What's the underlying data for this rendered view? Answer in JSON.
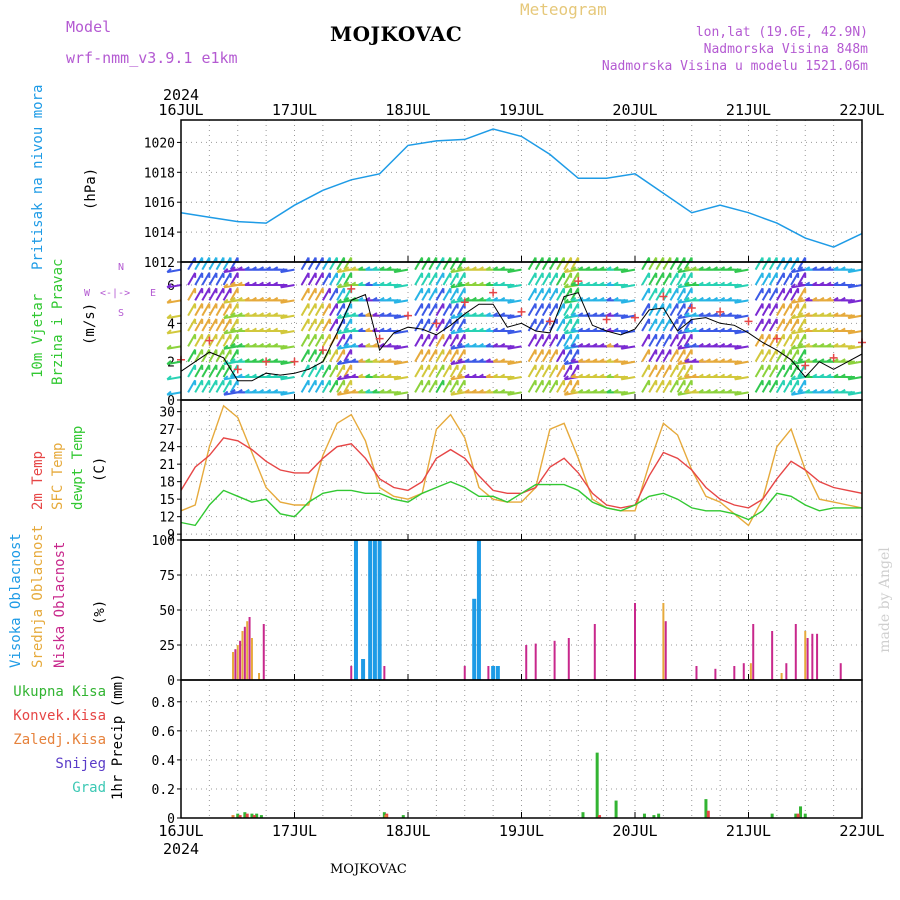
{
  "header": {
    "model_label": "Model",
    "model_name": "wrf-nmm_v3.9.1 e1km",
    "station": "MOJKOVAC",
    "chart_title": "Meteogram",
    "coords": "lon,lat (19.6E, 42.9N)",
    "elev": "Nadmorska Visina 848m",
    "elev_model": "Nadmorska Visina u modelu 1521.06m",
    "credit": "made by Angel",
    "footer": "MOJKOVAC"
  },
  "colors": {
    "pressure": "#1e9be6",
    "temp2m": "#e64646",
    "sfc": "#e6aa3c",
    "dewpt": "#32c832",
    "high": "#1e9be6",
    "mid": "#e6aa3c",
    "low": "#c8288c",
    "rain": "#32b432",
    "conv": "#e64646",
    "frz": "#e6823c",
    "snow": "#5a3cc8",
    "grad": "#3cc8b4",
    "label_purple": "#b45ad2"
  },
  "time_axis": {
    "year": "2024",
    "labels": [
      "16JUL",
      "17JUL",
      "18JUL",
      "19JUL",
      "20JUL",
      "21JUL",
      "22JUL"
    ]
  },
  "panel_labels": {
    "pressure": "Pritisak na nivou mora",
    "pressure_unit": "(hPa)",
    "wind1": "10m Vjetar",
    "wind2": "Brzina i Pravac",
    "wind_unit": "(m/s)",
    "temp1": "2m Temp",
    "temp2": "SFC Temp",
    "temp3": "dewpt Temp",
    "temp_unit": "(C)",
    "cloud1": "Visoka Oblacnost",
    "cloud2": "Srednja Oblacnost",
    "cloud3": "Niska Oblacnost",
    "cloud_unit": "(%)",
    "precip_unit": "1hr Precip (mm)",
    "compass_n": "N",
    "compass_s": "S",
    "compass_e": "E",
    "compass_w": "W"
  },
  "precip_legend": [
    "Ukupna Kisa",
    "Konvek.Kisa",
    "Zaledj.Kisa",
    "Snijeg",
    "Grad"
  ],
  "chart_data": [
    {
      "type": "line",
      "name": "pressure",
      "ylim": [
        1012,
        1021.5
      ],
      "yticks": [
        1012,
        1014,
        1016,
        1018,
        1020
      ],
      "x": [
        0,
        6,
        12,
        18,
        24,
        30,
        36,
        42,
        48,
        54,
        60,
        66,
        72,
        78,
        84,
        90,
        96,
        102,
        108,
        114,
        120,
        126,
        132,
        138,
        144
      ],
      "series": [
        {
          "values": [
            1015.3,
            1015.0,
            1014.7,
            1014.6,
            1015.8,
            1016.8,
            1017.5,
            1017.9,
            1019.8,
            1020.1,
            1020.2,
            1020.9,
            1020.4,
            1019.2,
            1017.6,
            1017.6,
            1017.9,
            1016.6,
            1015.3,
            1015.8,
            1015.3,
            1014.6,
            1013.6,
            1013.0,
            1013.9
          ]
        }
      ]
    },
    {
      "type": "line",
      "name": "wind",
      "ylim": [
        0,
        7.2
      ],
      "yticks": [
        0,
        2,
        4,
        6
      ],
      "x": [
        0,
        3,
        6,
        9,
        12,
        15,
        18,
        21,
        24,
        27,
        30,
        33,
        36,
        39,
        42,
        45,
        48,
        51,
        54,
        57,
        60,
        63,
        66,
        69,
        72,
        75,
        78,
        81,
        84,
        87,
        90,
        93,
        96,
        99,
        102,
        105,
        108,
        111,
        114,
        117,
        120,
        123,
        126,
        129,
        132,
        135,
        138,
        141,
        144
      ],
      "series": [
        {
          "values": [
            1.5,
            2.0,
            2.5,
            2.2,
            1.0,
            1.0,
            1.4,
            1.3,
            1.4,
            1.6,
            2.0,
            3.5,
            5.2,
            5.5,
            2.6,
            3.5,
            3.8,
            3.7,
            3.4,
            3.9,
            4.5,
            5.0,
            5.0,
            3.8,
            4.0,
            3.6,
            3.5,
            5.4,
            5.6,
            3.9,
            3.6,
            3.4,
            3.7,
            4.7,
            4.8,
            3.6,
            4.2,
            4.3,
            4.0,
            3.9,
            3.5,
            3.0,
            2.6,
            2.1,
            1.2,
            2.0,
            1.6,
            2.0,
            2.4
          ]
        }
      ]
    },
    {
      "type": "line",
      "name": "temperature",
      "ylim": [
        8,
        32
      ],
      "yticks": [
        9,
        12,
        15,
        18,
        21,
        24,
        27,
        30
      ],
      "x": [
        0,
        3,
        6,
        9,
        12,
        15,
        18,
        21,
        24,
        27,
        30,
        33,
        36,
        39,
        42,
        45,
        48,
        51,
        54,
        57,
        60,
        63,
        66,
        69,
        72,
        75,
        78,
        81,
        84,
        87,
        90,
        93,
        96,
        99,
        102,
        105,
        108,
        111,
        114,
        117,
        120,
        123,
        126,
        129,
        132,
        135,
        138,
        141,
        144
      ],
      "series": [
        {
          "values": [
            16.5,
            20.5,
            22.5,
            25.5,
            25.0,
            23.5,
            21.5,
            20.0,
            19.5,
            19.5,
            22.0,
            24.0,
            24.5,
            22.0,
            18.5,
            17.0,
            16.5,
            18.0,
            22.0,
            23.5,
            22.0,
            19.0,
            16.5,
            16.0,
            16.0,
            17.0,
            20.5,
            22.0,
            19.5,
            16.0,
            14.0,
            13.5,
            14.0,
            19.0,
            23.0,
            22.0,
            20.0,
            17.0,
            15.0,
            14.0,
            13.5,
            15.0,
            18.5,
            21.5,
            20.0,
            18.0,
            17.0,
            16.5,
            16.0
          ]
        },
        {
          "values": [
            13.0,
            14.0,
            24.0,
            31.0,
            29.0,
            23.0,
            17.0,
            14.5,
            14.0,
            14.0,
            22.5,
            28.0,
            29.5,
            25.0,
            17.0,
            15.5,
            15.0,
            16.0,
            27.0,
            29.5,
            25.5,
            17.0,
            15.0,
            14.5,
            14.5,
            17.0,
            27.0,
            28.0,
            22.0,
            15.0,
            13.5,
            13.0,
            13.0,
            21.0,
            28.0,
            26.0,
            20.0,
            15.5,
            14.5,
            12.5,
            10.5,
            15.0,
            24.0,
            27.0,
            20.0,
            15.0,
            14.5,
            14.0,
            13.5
          ]
        },
        {
          "values": [
            11.0,
            10.5,
            14.0,
            16.5,
            15.5,
            14.5,
            15.0,
            12.5,
            12.0,
            14.5,
            16.0,
            16.5,
            16.5,
            16.0,
            16.0,
            15.0,
            14.5,
            16.0,
            17.0,
            18.0,
            17.0,
            15.5,
            15.5,
            14.5,
            16.0,
            17.5,
            17.5,
            17.5,
            16.5,
            14.5,
            13.5,
            13.0,
            14.0,
            15.5,
            16.0,
            15.0,
            13.5,
            13.0,
            13.0,
            12.5,
            11.5,
            13.0,
            16.0,
            15.5,
            14.0,
            13.0,
            13.5,
            13.5,
            13.5
          ]
        }
      ]
    },
    {
      "type": "bar",
      "name": "cloudiness",
      "ylim": [
        0,
        100
      ],
      "yticks": [
        0,
        25,
        50,
        75,
        100
      ],
      "series": [
        {
          "x": [
            37,
            38.5,
            40,
            41,
            42,
            62,
            63,
            66,
            67
          ],
          "values": [
            100,
            15,
            100,
            100,
            100,
            58,
            100,
            10,
            10
          ]
        },
        {
          "x": [
            11,
            12,
            13,
            14,
            15,
            16.5,
            102,
            120.5,
            127,
            132
          ],
          "values": [
            20,
            25,
            35,
            42,
            30,
            5,
            55,
            12,
            5,
            35
          ]
        },
        {
          "x": [
            11.5,
            12.5,
            13.5,
            14.5,
            17.5,
            36,
            43,
            60,
            65,
            73,
            75,
            79,
            82,
            87.5,
            96,
            102.5,
            109,
            113,
            117,
            119,
            121,
            125,
            128,
            130,
            132.5,
            133.5,
            134.5,
            139.5
          ],
          "values": [
            22,
            28,
            38,
            45,
            40,
            10,
            10,
            10,
            10,
            25,
            26,
            28,
            30,
            40,
            55,
            42,
            10,
            8,
            10,
            12,
            40,
            35,
            12,
            40,
            30,
            33,
            33,
            12
          ]
        }
      ]
    },
    {
      "type": "bar",
      "name": "precipitation",
      "ylim": [
        0,
        0.95
      ],
      "yticks": [
        0,
        0.2,
        0.4,
        0.6,
        0.8
      ],
      "series": [
        {
          "x": [
            12,
            13.5,
            15,
            16,
            17,
            43,
            47,
            85,
            88,
            92,
            98,
            100,
            101,
            111,
            125,
            130,
            131,
            132
          ],
          "values": [
            0.03,
            0.04,
            0.03,
            0.03,
            0.02,
            0.04,
            0.02,
            0.04,
            0.45,
            0.12,
            0.03,
            0.02,
            0.03,
            0.13,
            0.03,
            0.03,
            0.08,
            0.03
          ]
        },
        {
          "x": [
            12.5,
            14,
            15.5,
            43.5,
            88.5,
            111.5,
            130.5
          ],
          "values": [
            0.02,
            0.03,
            0.02,
            0.03,
            0.02,
            0.05,
            0.03
          ]
        },
        {
          "x": [
            11,
            43.3
          ],
          "values": [
            0.02,
            0.02
          ]
        }
      ]
    }
  ]
}
